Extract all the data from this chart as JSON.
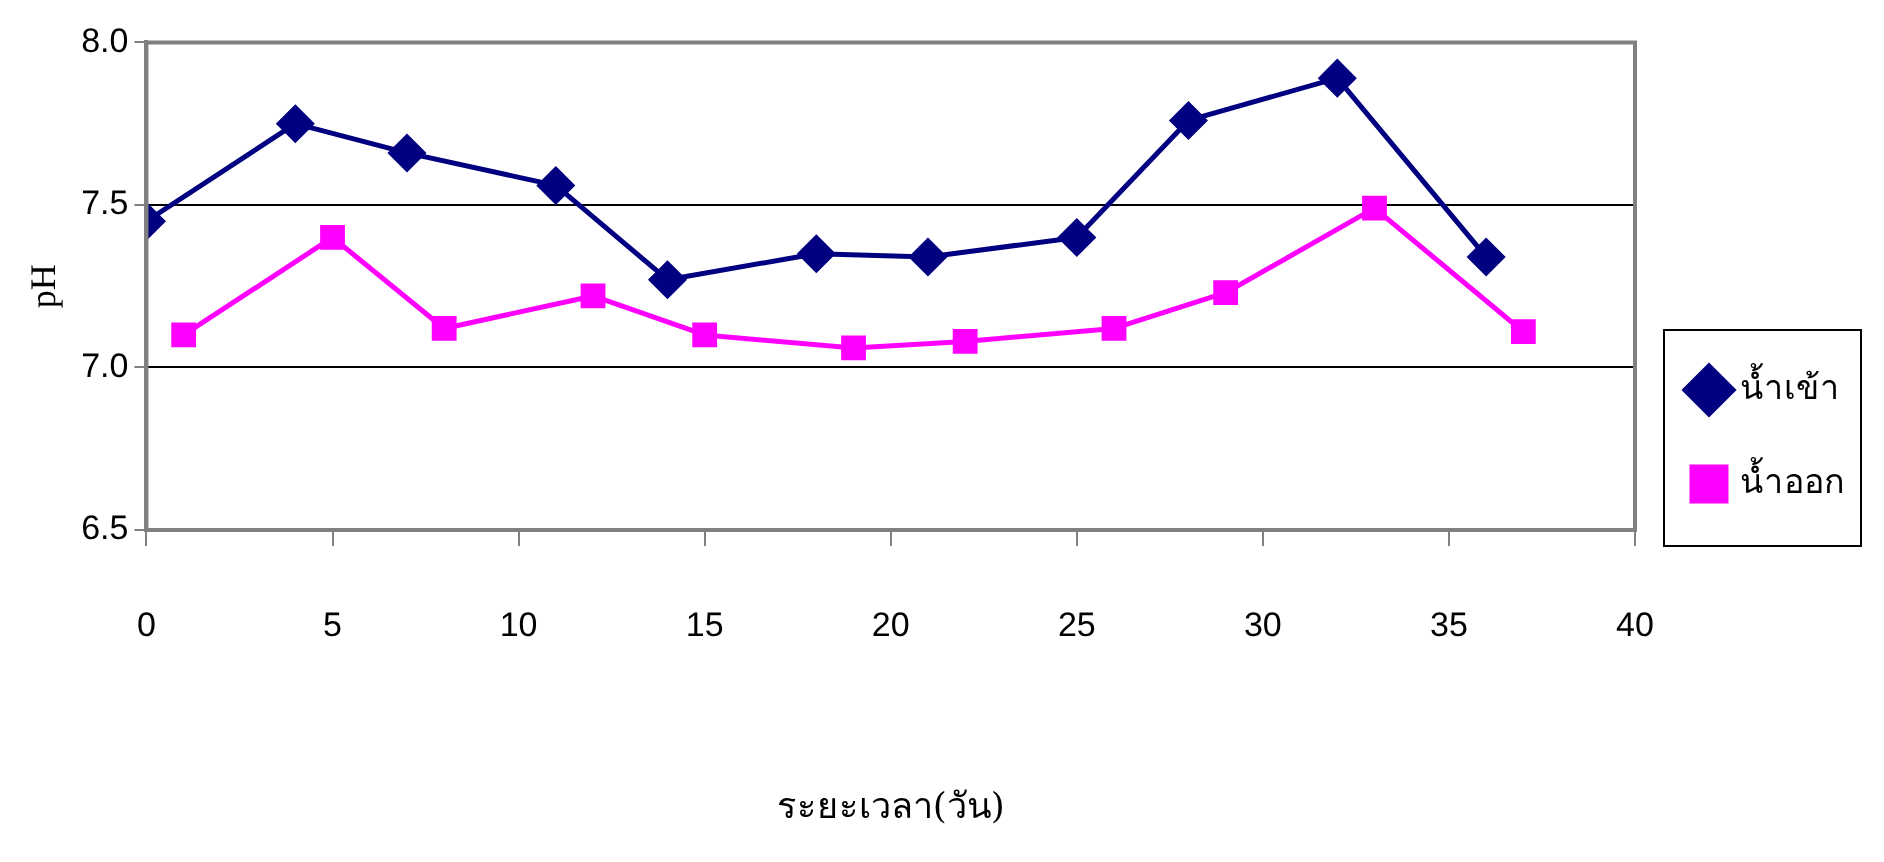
{
  "chart_data": {
    "type": "line",
    "xlabel": "ระยะเวลา(วัน)",
    "ylabel": "pH",
    "xlim": [
      0,
      40
    ],
    "xticks": [
      0,
      5,
      10,
      15,
      20,
      25,
      30,
      35,
      40
    ],
    "ylim": [
      6.5,
      8.0
    ],
    "yticks": [
      {
        "value": 6.5,
        "label": "6.5"
      },
      {
        "value": 7.0,
        "label": "7.0"
      },
      {
        "value": 7.5,
        "label": "7.5"
      },
      {
        "value": 8.0,
        "label": "8.0"
      }
    ],
    "grid": "y",
    "legend": "right",
    "series": [
      {
        "name": "น้ำเข้า",
        "color": "#000080",
        "marker": "diamond",
        "x": [
          0,
          4,
          7,
          11,
          14,
          18,
          21,
          25,
          28,
          32,
          36
        ],
        "values": [
          7.45,
          7.75,
          7.66,
          7.56,
          7.27,
          7.35,
          7.34,
          7.4,
          7.76,
          7.89,
          7.34
        ]
      },
      {
        "name": "น้ำออก",
        "color": "#ff00ff",
        "marker": "square",
        "x": [
          1,
          5,
          8,
          12,
          15,
          19,
          22,
          26,
          29,
          33,
          37
        ],
        "values": [
          7.1,
          7.4,
          7.12,
          7.22,
          7.1,
          7.06,
          7.08,
          7.12,
          7.23,
          7.49,
          7.11
        ]
      }
    ]
  }
}
